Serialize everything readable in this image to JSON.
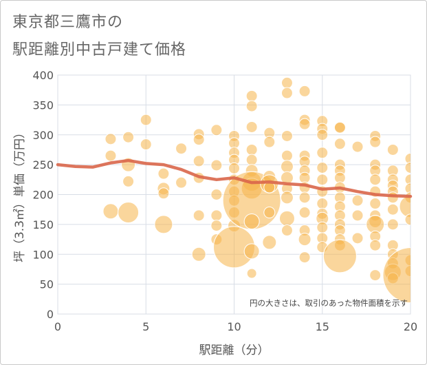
{
  "title_line1": "東京都三鷹市の",
  "title_line2": "駅距離別中古戸建て価格",
  "chart_data": {
    "type": "scatter",
    "xlabel": "駅距離（分）",
    "ylabel": "坪（3.3㎡）単価（万円）",
    "xlim": [
      0,
      20
    ],
    "ylim": [
      0,
      400
    ],
    "xticks": [
      0,
      5,
      10,
      15,
      20
    ],
    "yticks": [
      0,
      50,
      100,
      150,
      200,
      250,
      300,
      350,
      400
    ],
    "annotation": "円の大きさは、取引のあった物件面積を示す",
    "bubble_color": "#f5b54a",
    "trend_color": "#d9664a",
    "points": [
      {
        "x": 3,
        "y": 293,
        "r": 8
      },
      {
        "x": 3,
        "y": 265,
        "r": 8
      },
      {
        "x": 3,
        "y": 172,
        "r": 11
      },
      {
        "x": 4,
        "y": 296,
        "r": 8
      },
      {
        "x": 4,
        "y": 250,
        "r": 10
      },
      {
        "x": 4,
        "y": 222,
        "r": 8
      },
      {
        "x": 4,
        "y": 170,
        "r": 15
      },
      {
        "x": 5,
        "y": 325,
        "r": 8
      },
      {
        "x": 5,
        "y": 284,
        "r": 8
      },
      {
        "x": 6,
        "y": 235,
        "r": 8
      },
      {
        "x": 6,
        "y": 210,
        "r": 9
      },
      {
        "x": 6,
        "y": 202,
        "r": 8
      },
      {
        "x": 6,
        "y": 150,
        "r": 13
      },
      {
        "x": 7,
        "y": 277,
        "r": 8
      },
      {
        "x": 7,
        "y": 220,
        "r": 8
      },
      {
        "x": 8,
        "y": 301,
        "r": 8
      },
      {
        "x": 8,
        "y": 292,
        "r": 8
      },
      {
        "x": 8,
        "y": 256,
        "r": 8
      },
      {
        "x": 8,
        "y": 228,
        "r": 8
      },
      {
        "x": 8,
        "y": 165,
        "r": 8
      },
      {
        "x": 8,
        "y": 100,
        "r": 10
      },
      {
        "x": 9,
        "y": 308,
        "r": 8
      },
      {
        "x": 9,
        "y": 249,
        "r": 8
      },
      {
        "x": 9,
        "y": 200,
        "r": 8
      },
      {
        "x": 9,
        "y": 165,
        "r": 8
      },
      {
        "x": 9,
        "y": 148,
        "r": 8
      },
      {
        "x": 9,
        "y": 125,
        "r": 8
      },
      {
        "x": 10,
        "y": 298,
        "r": 8
      },
      {
        "x": 10,
        "y": 286,
        "r": 8
      },
      {
        "x": 10,
        "y": 270,
        "r": 8
      },
      {
        "x": 10,
        "y": 258,
        "r": 8
      },
      {
        "x": 10,
        "y": 244,
        "r": 8
      },
      {
        "x": 10,
        "y": 225,
        "r": 8
      },
      {
        "x": 10,
        "y": 205,
        "r": 8
      },
      {
        "x": 10,
        "y": 190,
        "r": 8
      },
      {
        "x": 10,
        "y": 170,
        "r": 8
      },
      {
        "x": 10,
        "y": 148,
        "r": 9
      },
      {
        "x": 10,
        "y": 112,
        "r": 30
      },
      {
        "x": 11,
        "y": 365,
        "r": 8
      },
      {
        "x": 11,
        "y": 348,
        "r": 8
      },
      {
        "x": 11,
        "y": 313,
        "r": 8
      },
      {
        "x": 11,
        "y": 275,
        "r": 8
      },
      {
        "x": 11,
        "y": 258,
        "r": 8
      },
      {
        "x": 11,
        "y": 240,
        "r": 9
      },
      {
        "x": 11,
        "y": 222,
        "r": 14
      },
      {
        "x": 11,
        "y": 210,
        "r": 15
      },
      {
        "x": 11,
        "y": 190,
        "r": 42
      },
      {
        "x": 11,
        "y": 155,
        "r": 11
      },
      {
        "x": 11,
        "y": 105,
        "r": 11
      },
      {
        "x": 11,
        "y": 68,
        "r": 7
      },
      {
        "x": 12,
        "y": 303,
        "r": 8
      },
      {
        "x": 12,
        "y": 288,
        "r": 8
      },
      {
        "x": 12,
        "y": 230,
        "r": 9
      },
      {
        "x": 12,
        "y": 218,
        "r": 13
      },
      {
        "x": 12,
        "y": 212,
        "r": 8
      },
      {
        "x": 12,
        "y": 170,
        "r": 8
      },
      {
        "x": 12,
        "y": 120,
        "r": 10
      },
      {
        "x": 13,
        "y": 387,
        "r": 8
      },
      {
        "x": 13,
        "y": 370,
        "r": 8
      },
      {
        "x": 13,
        "y": 298,
        "r": 8
      },
      {
        "x": 13,
        "y": 265,
        "r": 8
      },
      {
        "x": 13,
        "y": 247,
        "r": 9
      },
      {
        "x": 13,
        "y": 228,
        "r": 9
      },
      {
        "x": 13,
        "y": 210,
        "r": 8
      },
      {
        "x": 13,
        "y": 195,
        "r": 9
      },
      {
        "x": 13,
        "y": 160,
        "r": 11
      },
      {
        "x": 13,
        "y": 140,
        "r": 8
      },
      {
        "x": 14,
        "y": 373,
        "r": 8
      },
      {
        "x": 14,
        "y": 325,
        "r": 8
      },
      {
        "x": 14,
        "y": 318,
        "r": 8
      },
      {
        "x": 14,
        "y": 265,
        "r": 8
      },
      {
        "x": 14,
        "y": 255,
        "r": 8
      },
      {
        "x": 14,
        "y": 240,
        "r": 8
      },
      {
        "x": 14,
        "y": 228,
        "r": 8
      },
      {
        "x": 14,
        "y": 212,
        "r": 8
      },
      {
        "x": 14,
        "y": 195,
        "r": 8
      },
      {
        "x": 14,
        "y": 170,
        "r": 8
      },
      {
        "x": 14,
        "y": 140,
        "r": 8
      },
      {
        "x": 14,
        "y": 125,
        "r": 9
      },
      {
        "x": 14,
        "y": 95,
        "r": 8
      },
      {
        "x": 15,
        "y": 323,
        "r": 8
      },
      {
        "x": 15,
        "y": 310,
        "r": 8
      },
      {
        "x": 15,
        "y": 300,
        "r": 8
      },
      {
        "x": 15,
        "y": 270,
        "r": 8
      },
      {
        "x": 15,
        "y": 245,
        "r": 8
      },
      {
        "x": 15,
        "y": 225,
        "r": 8
      },
      {
        "x": 15,
        "y": 205,
        "r": 8
      },
      {
        "x": 15,
        "y": 185,
        "r": 8
      },
      {
        "x": 15,
        "y": 168,
        "r": 8
      },
      {
        "x": 15,
        "y": 160,
        "r": 9
      },
      {
        "x": 15,
        "y": 145,
        "r": 8
      },
      {
        "x": 15,
        "y": 127,
        "r": 8
      },
      {
        "x": 15,
        "y": 112,
        "r": 8
      },
      {
        "x": 16,
        "y": 313,
        "r": 8
      },
      {
        "x": 16,
        "y": 312,
        "r": 8
      },
      {
        "x": 16,
        "y": 285,
        "r": 8
      },
      {
        "x": 16,
        "y": 250,
        "r": 8
      },
      {
        "x": 16,
        "y": 240,
        "r": 8
      },
      {
        "x": 16,
        "y": 228,
        "r": 8
      },
      {
        "x": 16,
        "y": 212,
        "r": 8
      },
      {
        "x": 16,
        "y": 195,
        "r": 8
      },
      {
        "x": 16,
        "y": 180,
        "r": 8
      },
      {
        "x": 16,
        "y": 165,
        "r": 8
      },
      {
        "x": 16,
        "y": 150,
        "r": 8
      },
      {
        "x": 16,
        "y": 140,
        "r": 8
      },
      {
        "x": 16,
        "y": 125,
        "r": 8
      },
      {
        "x": 16,
        "y": 115,
        "r": 8
      },
      {
        "x": 16,
        "y": 97,
        "r": 24
      },
      {
        "x": 17,
        "y": 280,
        "r": 8
      },
      {
        "x": 17,
        "y": 190,
        "r": 8
      },
      {
        "x": 17,
        "y": 165,
        "r": 8
      },
      {
        "x": 17,
        "y": 127,
        "r": 8
      },
      {
        "x": 18,
        "y": 298,
        "r": 8
      },
      {
        "x": 18,
        "y": 288,
        "r": 8
      },
      {
        "x": 18,
        "y": 250,
        "r": 8
      },
      {
        "x": 18,
        "y": 240,
        "r": 8
      },
      {
        "x": 18,
        "y": 225,
        "r": 8
      },
      {
        "x": 18,
        "y": 205,
        "r": 8
      },
      {
        "x": 18,
        "y": 185,
        "r": 8
      },
      {
        "x": 18,
        "y": 165,
        "r": 8
      },
      {
        "x": 18,
        "y": 155,
        "r": 9
      },
      {
        "x": 18,
        "y": 150,
        "r": 13
      },
      {
        "x": 18,
        "y": 130,
        "r": 8
      },
      {
        "x": 18,
        "y": 115,
        "r": 8
      },
      {
        "x": 18,
        "y": 65,
        "r": 8
      },
      {
        "x": 19,
        "y": 275,
        "r": 8
      },
      {
        "x": 19,
        "y": 240,
        "r": 8
      },
      {
        "x": 19,
        "y": 225,
        "r": 8
      },
      {
        "x": 19,
        "y": 215,
        "r": 8
      },
      {
        "x": 19,
        "y": 205,
        "r": 8
      },
      {
        "x": 19,
        "y": 195,
        "r": 8
      },
      {
        "x": 19,
        "y": 175,
        "r": 8
      },
      {
        "x": 19,
        "y": 150,
        "r": 8
      },
      {
        "x": 19,
        "y": 115,
        "r": 8
      },
      {
        "x": 19,
        "y": 100,
        "r": 8
      },
      {
        "x": 19,
        "y": 85,
        "r": 8
      },
      {
        "x": 19,
        "y": 70,
        "r": 12
      },
      {
        "x": 19,
        "y": 60,
        "r": 8
      },
      {
        "x": 20,
        "y": 260,
        "r": 8
      },
      {
        "x": 20,
        "y": 245,
        "r": 8
      },
      {
        "x": 20,
        "y": 225,
        "r": 8
      },
      {
        "x": 20,
        "y": 210,
        "r": 8
      },
      {
        "x": 20,
        "y": 195,
        "r": 8
      },
      {
        "x": 20,
        "y": 180,
        "r": 16
      },
      {
        "x": 20,
        "y": 158,
        "r": 8
      },
      {
        "x": 20,
        "y": 90,
        "r": 8
      },
      {
        "x": 20,
        "y": 72,
        "r": 8
      },
      {
        "x": 20,
        "y": 65,
        "r": 40
      }
    ],
    "trend": {
      "x": [
        0,
        1,
        2,
        3,
        4,
        5,
        6,
        7,
        8,
        9,
        10,
        11,
        12,
        13,
        14,
        15,
        16,
        17,
        18,
        19,
        20
      ],
      "y": [
        250,
        247,
        246,
        253,
        257,
        252,
        250,
        242,
        230,
        225,
        228,
        220,
        221,
        218,
        216,
        209,
        211,
        205,
        200,
        198,
        197
      ]
    }
  }
}
